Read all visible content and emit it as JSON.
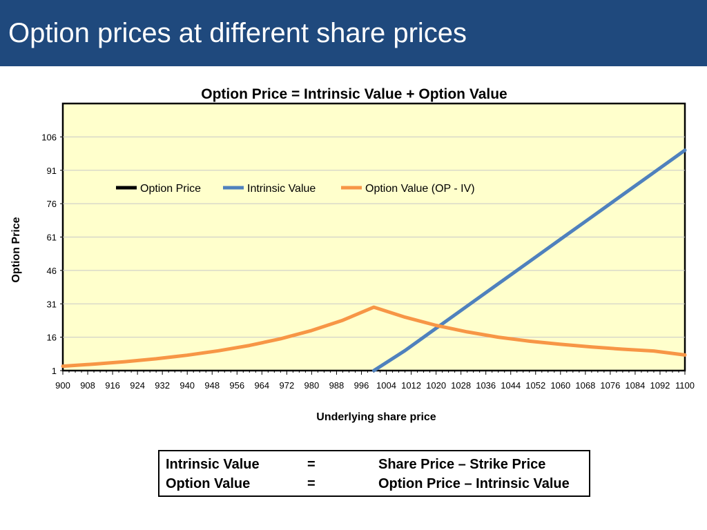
{
  "slide": {
    "title": "Option prices at different share prices"
  },
  "chart_data": {
    "type": "line",
    "title": "Option Price = Intrinsic Value + Option Value",
    "xlabel": "Underlying share price",
    "ylabel": "Option Price",
    "xlim": [
      900,
      1100
    ],
    "ylim": [
      1,
      121
    ],
    "yticks": [
      1,
      16,
      31,
      46,
      61,
      76,
      91,
      106
    ],
    "xticks": [
      900,
      908,
      916,
      924,
      932,
      940,
      948,
      956,
      964,
      972,
      980,
      988,
      996,
      1004,
      1012,
      1020,
      1028,
      1036,
      1044,
      1052,
      1060,
      1068,
      1076,
      1084,
      1092,
      1100
    ],
    "grid": "horizontal",
    "legend_position": "top-left",
    "plot_background": "#ffffcc",
    "series": [
      {
        "name": "Option Price",
        "color": "#000000",
        "x": [],
        "values": []
      },
      {
        "name": "Intrinsic Value",
        "color": "#4f81bd",
        "x": [
          1000,
          1010,
          1020,
          1030,
          1040,
          1050,
          1060,
          1070,
          1080,
          1090,
          1100
        ],
        "values": [
          0,
          10,
          20,
          30,
          40,
          50,
          60,
          70,
          80,
          90,
          100
        ]
      },
      {
        "name": "Option Value (OP - IV)",
        "color": "#f79646",
        "x": [
          900,
          910,
          920,
          930,
          940,
          950,
          960,
          970,
          980,
          990,
          1000,
          1010,
          1020,
          1030,
          1040,
          1050,
          1060,
          1070,
          1080,
          1090,
          1100
        ],
        "values": [
          3,
          3.9,
          5,
          6.3,
          7.9,
          9.9,
          12.3,
          15.3,
          19,
          23.6,
          29.5,
          25,
          21.3,
          18.4,
          16,
          14.2,
          12.8,
          11.6,
          10.6,
          9.8,
          8
        ]
      }
    ]
  },
  "formula": {
    "rows": [
      {
        "lhs": "Intrinsic Value",
        "eq": "=",
        "rhs": "Share Price – Strike Price"
      },
      {
        "lhs": "Option Value",
        "eq": "=",
        "rhs": "Option Price – Intrinsic Value"
      }
    ]
  }
}
